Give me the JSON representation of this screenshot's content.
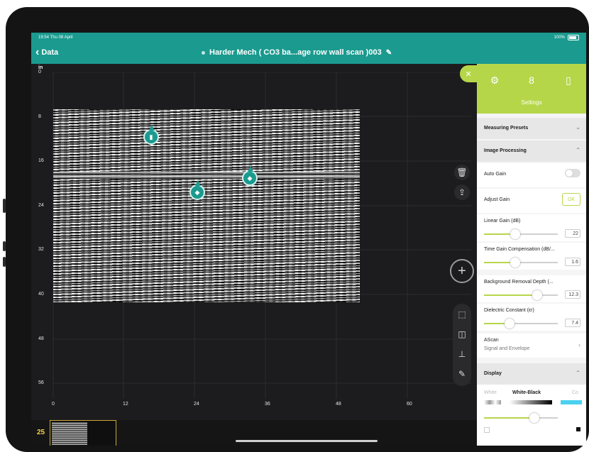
{
  "status": {
    "time": "19:54 Thu 08 April",
    "battery": "100%"
  },
  "nav": {
    "back_label": "Data",
    "title": "Harder Mech ( CO3 ba...age row wall scan )003"
  },
  "plot": {
    "unit": "in",
    "y_ticks": [
      "0",
      "8",
      "16",
      "24",
      "32",
      "40",
      "48",
      "56"
    ],
    "x_ticks": [
      "0",
      "12",
      "24",
      "36",
      "48",
      "60"
    ]
  },
  "bottom": {
    "page_number": "25"
  },
  "panel": {
    "title": "Settings",
    "tabs": [
      "settings-icon",
      "markers-icon",
      "layers-icon"
    ],
    "measuring_presets": "Measuring Presets",
    "image_processing": "Image Processing",
    "auto_gain": "Auto Gain",
    "adjust_gain": "Adjust Gain",
    "ok_label": "OK",
    "linear_gain": {
      "label": "Linear Gain (dB)",
      "value": "22",
      "level": 0.42
    },
    "tgc": {
      "label": "Time Gain Compensation (dB/...",
      "value": "1.6",
      "level": 0.42
    },
    "bg_removal": {
      "label": "Background Removal Depth (...",
      "value": "12.3",
      "level": 0.72
    },
    "dielectric": {
      "label": "Dielectric Constant (εr)",
      "value": "7.4",
      "level": 0.35
    },
    "ascan": {
      "label": "AScan",
      "sub": "Signal and Envelope"
    },
    "display": "Display",
    "palettes": [
      "White",
      "White-Black",
      "Co"
    ],
    "display_level": 0.68
  },
  "colors": {
    "teal": "#1b9a8f",
    "lime": "#b6d64a"
  }
}
